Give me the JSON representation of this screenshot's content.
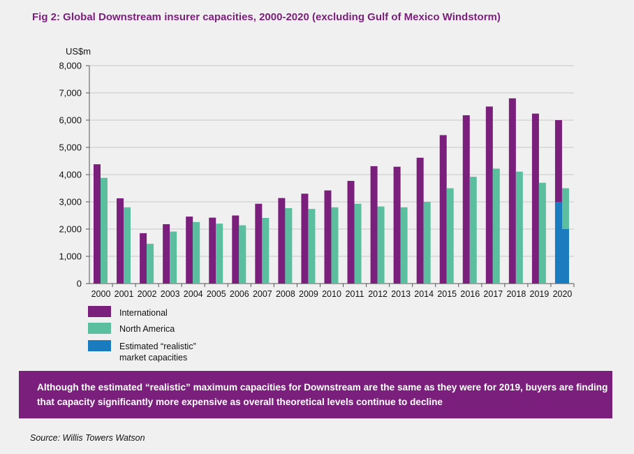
{
  "title": "Fig 2: Global Downstream insurer capacities, 2000-2020 (excluding Gulf of Mexico Windstorm)",
  "chart_data": {
    "type": "bar",
    "ylabel": "US$m",
    "xlabel": "",
    "ylim": [
      0,
      8000
    ],
    "yticks": [
      0,
      1000,
      2000,
      3000,
      4000,
      5000,
      6000,
      7000,
      8000
    ],
    "ytick_labels": [
      "0",
      "1,000",
      "2,000",
      "3,000",
      "4,000",
      "5,000",
      "6,000",
      "7,000",
      "8,000"
    ],
    "grid": true,
    "categories": [
      "2000",
      "2001",
      "2002",
      "2003",
      "2004",
      "2005",
      "2006",
      "2007",
      "2008",
      "2009",
      "2010",
      "2011",
      "2012",
      "2013",
      "2014",
      "2015",
      "2016",
      "2017",
      "2018",
      "2019",
      "2020"
    ],
    "series": [
      {
        "name": "International",
        "color": "#7b1f7c",
        "values": [
          4380,
          3130,
          1850,
          2180,
          2460,
          2420,
          2500,
          2930,
          3140,
          3300,
          3420,
          3770,
          4310,
          4290,
          4620,
          5450,
          6180,
          6500,
          6800,
          6240,
          6000
        ]
      },
      {
        "name": "North America",
        "color": "#5bbf9f",
        "values": [
          3880,
          2800,
          1460,
          1910,
          2260,
          2200,
          2140,
          2410,
          2770,
          2740,
          2800,
          2930,
          2830,
          2800,
          3000,
          3500,
          3920,
          4220,
          4110,
          3700,
          3500
        ]
      },
      {
        "name": "Estimated “realistic” market capacities",
        "color": "#1a7bbf",
        "values": [
          null,
          null,
          null,
          null,
          null,
          null,
          null,
          null,
          null,
          null,
          null,
          null,
          null,
          null,
          null,
          null,
          null,
          null,
          null,
          null,
          null
        ],
        "overlay_2020": {
          "International": 3000,
          "North America": 2000
        }
      }
    ],
    "legend_position": "bottom-left"
  },
  "legend": [
    {
      "label": "International",
      "color": "#7b1f7c"
    },
    {
      "label": "North America",
      "color": "#5bbf9f"
    },
    {
      "label": "Estimated “realistic” market capacities",
      "color": "#1a7bbf"
    }
  ],
  "banner_text": "Although the estimated “realistic” maximum capacities for Downstream are the same as they were for 2019, buyers are finding that capacity significantly more expensive as overall theoretical levels continue to decline",
  "source": "Source: Willis Towers Watson"
}
